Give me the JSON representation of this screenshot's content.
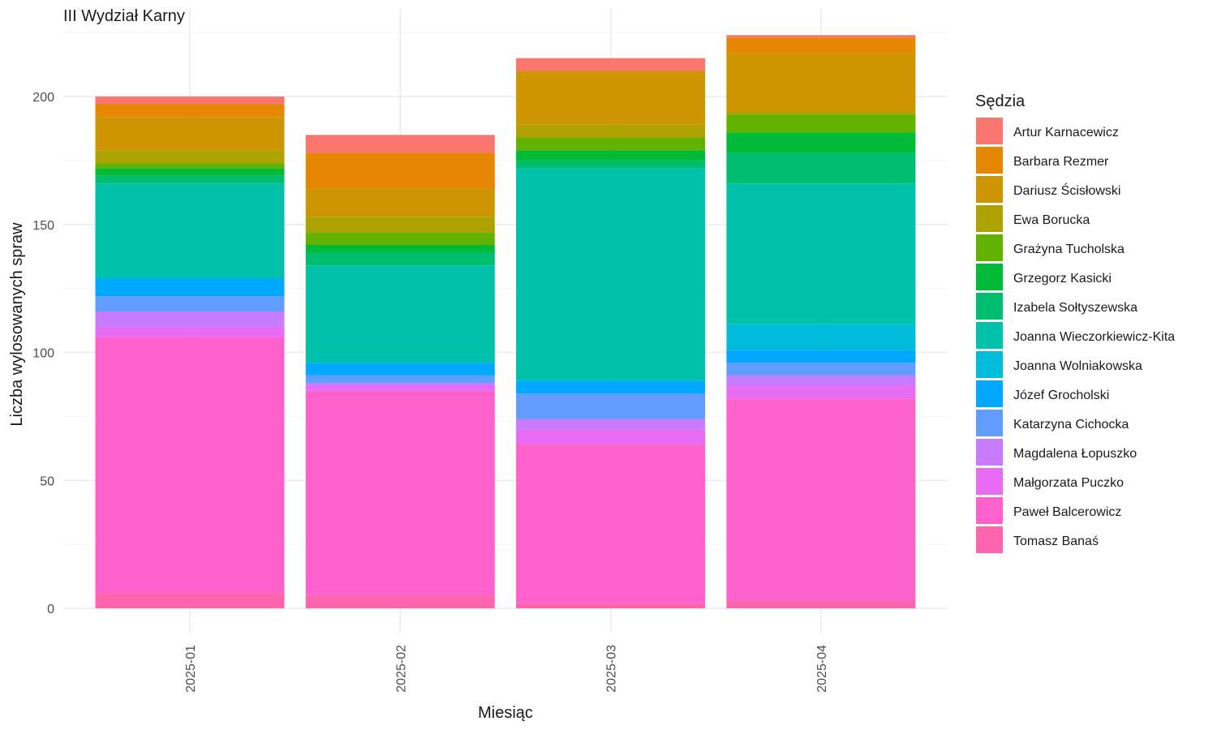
{
  "chart_data": {
    "type": "bar",
    "stacked": true,
    "title": "III Wydział Karny",
    "xlabel": "Miesiąc",
    "ylabel": "Liczba wylosowanych spraw",
    "ylim": [
      0,
      222
    ],
    "yticks": [
      0,
      50,
      100,
      150,
      200
    ],
    "grid": true,
    "legend_title": "Sędzia",
    "legend_position": "right",
    "categories": [
      "2025-01",
      "2025-02",
      "2025-03",
      "2025-04"
    ],
    "series": [
      {
        "name": "Tomasz Banaś",
        "color": "#FF65AE",
        "values": [
          6,
          5,
          2,
          3
        ]
      },
      {
        "name": "Paweł Balcerowicz",
        "color": "#FF61CC",
        "values": [
          100,
          80,
          62,
          79
        ]
      },
      {
        "name": "Małgorzata Puczko",
        "color": "#E76BF3",
        "values": [
          4,
          2,
          6,
          5
        ]
      },
      {
        "name": "Magdalena Łopuszko",
        "color": "#C77CFF",
        "values": [
          6,
          1,
          4,
          4
        ]
      },
      {
        "name": "Katarzyna Cichocka",
        "color": "#619CFF",
        "values": [
          6,
          3,
          10,
          5
        ]
      },
      {
        "name": "Józef Grocholski",
        "color": "#00A9FF",
        "values": [
          7,
          5,
          5,
          5
        ]
      },
      {
        "name": "Joanna Wolniakowska",
        "color": "#00BCD8",
        "values": [
          0,
          0,
          0,
          10
        ]
      },
      {
        "name": "Joanna Wieczorkiewicz-Kita",
        "color": "#00C1AA",
        "values": [
          37,
          38,
          83,
          55
        ]
      },
      {
        "name": "Izabela Sołtyszewska",
        "color": "#00BE70",
        "values": [
          3,
          5,
          3,
          12
        ]
      },
      {
        "name": "Grzegorz Kasicki",
        "color": "#00BA38",
        "values": [
          3,
          3,
          4,
          8
        ]
      },
      {
        "name": "Grażyna Tucholska",
        "color": "#64B200",
        "values": [
          2,
          5,
          5,
          7
        ]
      },
      {
        "name": "Ewa Borucka",
        "color": "#AEA200",
        "values": [
          5,
          6,
          5,
          1
        ]
      },
      {
        "name": "Dariusz Ścisłowski",
        "color": "#CD9600",
        "values": [
          13,
          11,
          21,
          23
        ]
      },
      {
        "name": "Barbara Rezmer",
        "color": "#E58700",
        "values": [
          5,
          14,
          0,
          6
        ]
      },
      {
        "name": "Artur Karnacewicz",
        "color": "#F8766D",
        "values": [
          3,
          7,
          5,
          1
        ]
      }
    ],
    "legend_order": [
      "Artur Karnacewicz",
      "Barbara Rezmer",
      "Dariusz Ścisłowski",
      "Ewa Borucka",
      "Grażyna Tucholska",
      "Grzegorz Kasicki",
      "Izabela Sołtyszewska",
      "Joanna Wieczorkiewicz-Kita",
      "Joanna Wolniakowska",
      "Józef Grocholski",
      "Katarzyna Cichocka",
      "Magdalena Łopuszko",
      "Małgorzata Puczko",
      "Paweł Balcerowicz",
      "Tomasz Banaś"
    ]
  }
}
